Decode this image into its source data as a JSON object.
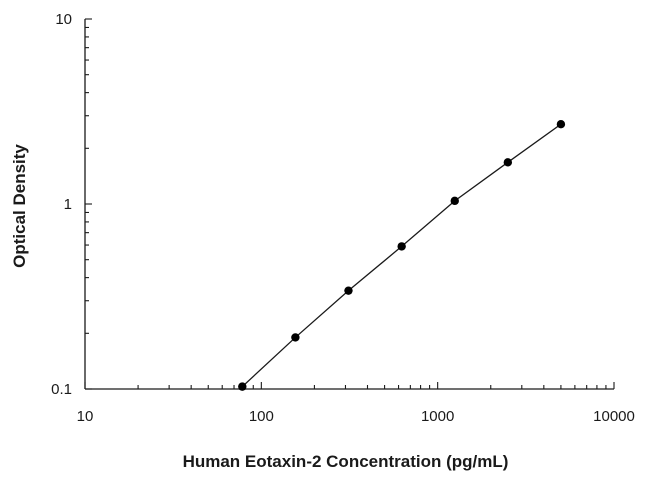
{
  "chart_data": {
    "type": "scatter",
    "xlabel": "Human Eotaxin-2 Concentration (pg/mL)",
    "ylabel": "Optical Density",
    "xscale": "log",
    "yscale": "log",
    "xlim": [
      10,
      10000
    ],
    "ylim": [
      0.1,
      10
    ],
    "x_ticks": [
      "10",
      "100",
      "1000",
      "10000"
    ],
    "y_ticks": [
      "0.1",
      "1",
      "10"
    ],
    "grid": false,
    "legend": "none",
    "fit_line": true,
    "series": [
      {
        "x": [
          78,
          156,
          312,
          625,
          1250,
          2500,
          5000
        ],
        "y": [
          0.103,
          0.19,
          0.34,
          0.59,
          1.04,
          1.68,
          2.7
        ]
      }
    ]
  }
}
